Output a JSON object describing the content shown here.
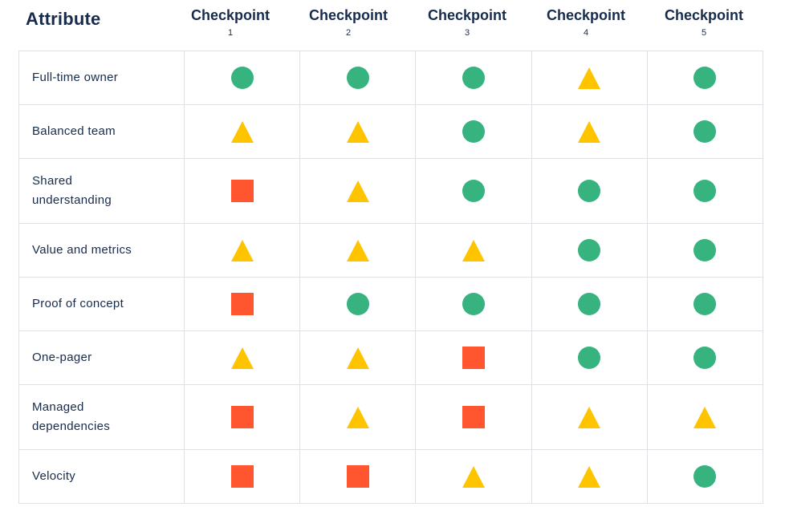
{
  "header": {
    "attribute_label": "Attribute",
    "checkpoints": [
      {
        "title": "Checkpoint",
        "number": "1"
      },
      {
        "title": "Checkpoint",
        "number": "2"
      },
      {
        "title": "Checkpoint",
        "number": "3"
      },
      {
        "title": "Checkpoint",
        "number": "4"
      },
      {
        "title": "Checkpoint",
        "number": "5"
      }
    ]
  },
  "legend_shapes": {
    "circle": "green-circle-icon",
    "triangle": "yellow-triangle-icon",
    "square": "red-square-icon"
  },
  "colors": {
    "circle": "#36b37e",
    "triangle": "#ffc400",
    "square": "#ff5630",
    "text": "#172b4d",
    "grid": "#dfe1e6"
  },
  "rows": [
    {
      "label": "Full-time owner",
      "statuses": [
        "circle",
        "circle",
        "circle",
        "triangle",
        "circle"
      ]
    },
    {
      "label": "Balanced team",
      "statuses": [
        "triangle",
        "triangle",
        "circle",
        "triangle",
        "circle"
      ]
    },
    {
      "label": "Shared understanding",
      "statuses": [
        "square",
        "triangle",
        "circle",
        "circle",
        "circle"
      ]
    },
    {
      "label": "Value and metrics",
      "statuses": [
        "triangle",
        "triangle",
        "triangle",
        "circle",
        "circle"
      ]
    },
    {
      "label": "Proof of concept",
      "statuses": [
        "square",
        "circle",
        "circle",
        "circle",
        "circle"
      ]
    },
    {
      "label": "One-pager",
      "statuses": [
        "triangle",
        "triangle",
        "square",
        "circle",
        "circle"
      ]
    },
    {
      "label": "Managed dependencies",
      "statuses": [
        "square",
        "triangle",
        "square",
        "triangle",
        "triangle"
      ]
    },
    {
      "label": "Velocity",
      "statuses": [
        "square",
        "square",
        "triangle",
        "triangle",
        "circle"
      ]
    }
  ]
}
